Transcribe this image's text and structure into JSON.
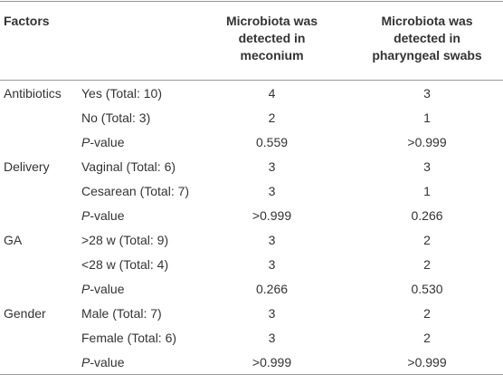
{
  "header": {
    "factors": "Factors",
    "meconium": [
      "Microbiota was",
      "detected in",
      "meconium"
    ],
    "pharyngeal": [
      "Microbiota was",
      "detected in",
      "pharyngeal swabs"
    ]
  },
  "groups": [
    {
      "factor": "Antibiotics",
      "rows": [
        {
          "label": "Yes (Total: 10)",
          "meconium": "4",
          "pharyngeal": "3"
        },
        {
          "label": "No (Total: 3)",
          "meconium": "2",
          "pharyngeal": "1"
        },
        {
          "label": "P-value",
          "meconium": "0.559",
          "pharyngeal": ">0.999"
        }
      ]
    },
    {
      "factor": "Delivery",
      "rows": [
        {
          "label": "Vaginal (Total: 6)",
          "meconium": "3",
          "pharyngeal": "3"
        },
        {
          "label": "Cesarean (Total: 7)",
          "meconium": "3",
          "pharyngeal": "1"
        },
        {
          "label": "P-value",
          "meconium": ">0.999",
          "pharyngeal": "0.266"
        }
      ]
    },
    {
      "factor": "GA",
      "rows": [
        {
          "label": ">28 w (Total: 9)",
          "meconium": "3",
          "pharyngeal": "2"
        },
        {
          "label": "<28 w (Total: 4)",
          "meconium": "3",
          "pharyngeal": "2"
        },
        {
          "label": "P-value",
          "meconium": "0.266",
          "pharyngeal": "0.530"
        }
      ]
    },
    {
      "factor": "Gender",
      "rows": [
        {
          "label": "Male (Total: 7)",
          "meconium": "3",
          "pharyngeal": "2"
        },
        {
          "label": "Female (Total: 6)",
          "meconium": "3",
          "pharyngeal": "2"
        },
        {
          "label": "P-value",
          "meconium": ">0.999",
          "pharyngeal": ">0.999"
        }
      ]
    }
  ]
}
